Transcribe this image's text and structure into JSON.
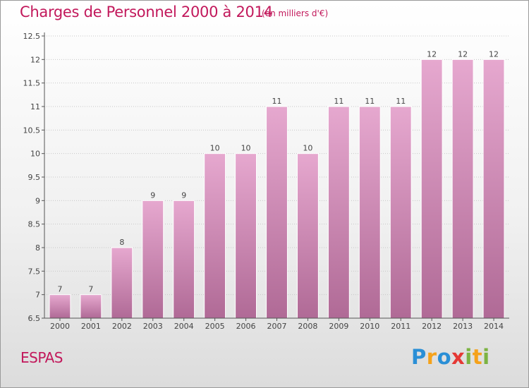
{
  "title": "Charges de Personnel 2000 à 2014",
  "subtitle": "(en milliers d'€)",
  "commune": "ESPAS",
  "logo": {
    "text": "Proxiti",
    "letters": [
      {
        "ch": "P",
        "color": "#2a8fd6"
      },
      {
        "ch": "r",
        "color": "#f5a21b"
      },
      {
        "ch": "o",
        "color": "#2a8fd6"
      },
      {
        "ch": "x",
        "color": "#e53935"
      },
      {
        "ch": "i",
        "color": "#7cb342"
      },
      {
        "ch": "t",
        "color": "#f5a21b"
      },
      {
        "ch": "i",
        "color": "#7cb342"
      }
    ]
  },
  "colors": {
    "accent": "#c2185b",
    "bar_top": "#e6a8cf",
    "bar_bottom": "#b06a96",
    "grid": "#c8c8c8",
    "axis": "#555555"
  },
  "chart_data": {
    "type": "bar",
    "categories": [
      "2000",
      "2001",
      "2002",
      "2003",
      "2004",
      "2005",
      "2006",
      "2007",
      "2008",
      "2009",
      "2010",
      "2011",
      "2012",
      "2013",
      "2014"
    ],
    "values": [
      7,
      7,
      8,
      9,
      9,
      10,
      10,
      11,
      10,
      11,
      11,
      11,
      12,
      12,
      12
    ],
    "value_labels": [
      "7",
      "7",
      "8",
      "9",
      "9",
      "10",
      "10",
      "11",
      "10",
      "11",
      "11",
      "11",
      "12",
      "12",
      "12"
    ],
    "ylim": [
      6.5,
      12.5
    ],
    "yticks": [
      6.5,
      7,
      7.5,
      8,
      8.5,
      9,
      9.5,
      10,
      10.5,
      11,
      11.5,
      12,
      12.5
    ],
    "ytick_labels": [
      "6.5",
      "7",
      "7.5",
      "8",
      "8.5",
      "9",
      "9.5",
      "10",
      "10.5",
      "11",
      "11.5",
      "12",
      "12.5"
    ],
    "grid": true,
    "title": "Charges de Personnel 2000 à 2014",
    "xlabel": "",
    "ylabel": ""
  }
}
